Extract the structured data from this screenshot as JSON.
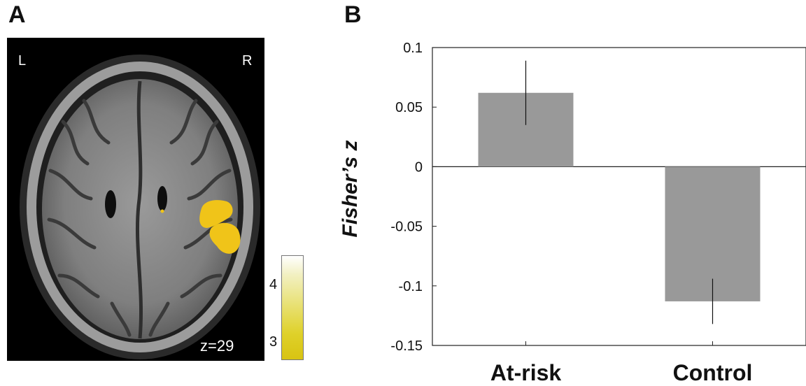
{
  "panels": {
    "a": {
      "letter": "A"
    },
    "b": {
      "letter": "B"
    }
  },
  "brain_image": {
    "left_label": "L",
    "right_label": "R",
    "slice_label": "z=29",
    "colorbar_ticks": [
      "4",
      "3"
    ],
    "colorbar_colors": [
      "#ffffff",
      "#f2f0c2",
      "#e9e27a",
      "#dfd12a",
      "#d8c312"
    ],
    "activation_color": "#f0c419"
  },
  "chart_data": {
    "type": "bar",
    "categories": [
      "At-risk",
      "Control"
    ],
    "values": [
      0.062,
      -0.113
    ],
    "error_bars": [
      0.027,
      0.019
    ],
    "ylabel": "Fisher’s z",
    "ylim": [
      -0.15,
      0.1
    ],
    "y_ticks": [
      0.1,
      0.05,
      0,
      -0.05,
      -0.1,
      -0.15
    ],
    "y_tick_labels": [
      "0.1",
      "0.05",
      "0",
      "-0.05",
      "-0.1",
      "-0.15"
    ],
    "bar_color": "#999999",
    "grid": false,
    "legend": "none"
  }
}
